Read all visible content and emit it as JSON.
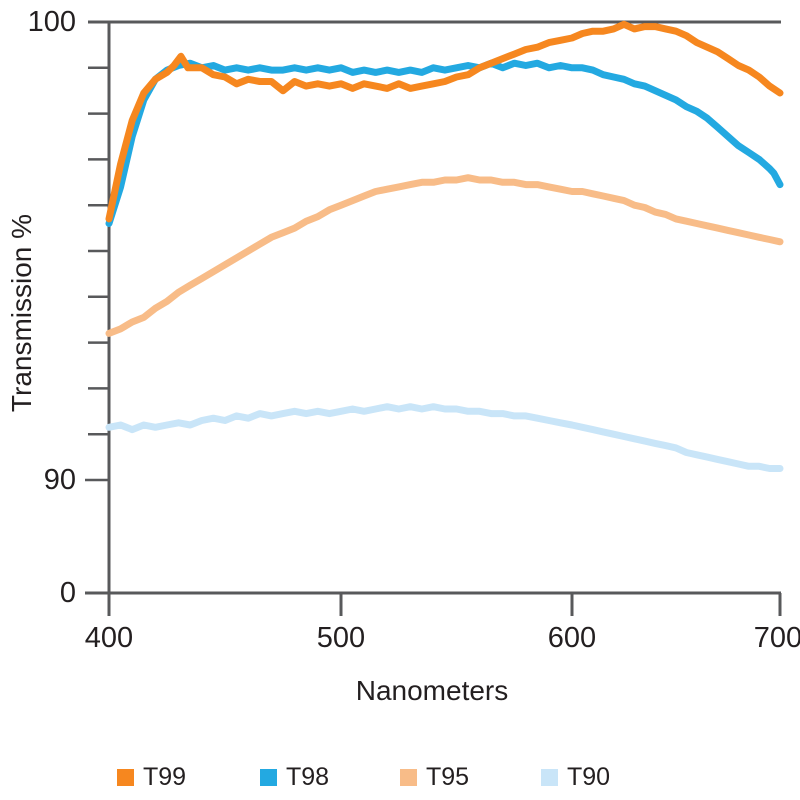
{
  "chart_data": {
    "type": "line",
    "xlabel": "Nanometers",
    "ylabel": "Transmission %",
    "x_ticks": [
      400,
      500,
      600,
      700
    ],
    "y_ticks": [
      100,
      90,
      0
    ],
    "y_axis": {
      "labeled_ticks": [
        100,
        90,
        0
      ],
      "minor_tick_interval": 1,
      "minor_tick_range": [
        90,
        100
      ],
      "broken_axis_between": [
        0,
        90
      ]
    },
    "x_range": [
      400,
      700
    ],
    "grid": "off",
    "legend_position": "bottom",
    "axis_color": "#58595B",
    "text_color": "#231F20",
    "series": [
      {
        "name": "T99",
        "color": "#F6871F",
        "points": [
          [
            400,
            95.7
          ],
          [
            405,
            96.9
          ],
          [
            410,
            97.85
          ],
          [
            415,
            98.45
          ],
          [
            420,
            98.75
          ],
          [
            425,
            98.9
          ],
          [
            428,
            99.05
          ],
          [
            431,
            99.25
          ],
          [
            434,
            99.0
          ],
          [
            440,
            99.0
          ],
          [
            445,
            98.85
          ],
          [
            450,
            98.8
          ],
          [
            455,
            98.65
          ],
          [
            460,
            98.75
          ],
          [
            465,
            98.7
          ],
          [
            470,
            98.7
          ],
          [
            475,
            98.5
          ],
          [
            480,
            98.7
          ],
          [
            485,
            98.6
          ],
          [
            490,
            98.65
          ],
          [
            495,
            98.6
          ],
          [
            500,
            98.65
          ],
          [
            505,
            98.55
          ],
          [
            510,
            98.65
          ],
          [
            515,
            98.6
          ],
          [
            520,
            98.55
          ],
          [
            525,
            98.65
          ],
          [
            530,
            98.55
          ],
          [
            535,
            98.6
          ],
          [
            540,
            98.65
          ],
          [
            545,
            98.7
          ],
          [
            550,
            98.8
          ],
          [
            555,
            98.85
          ],
          [
            560,
            99.0
          ],
          [
            565,
            99.1
          ],
          [
            570,
            99.2
          ],
          [
            575,
            99.3
          ],
          [
            580,
            99.4
          ],
          [
            585,
            99.45
          ],
          [
            590,
            99.55
          ],
          [
            595,
            99.6
          ],
          [
            600,
            99.65
          ],
          [
            605,
            99.75
          ],
          [
            610,
            99.8
          ],
          [
            615,
            99.8
          ],
          [
            620,
            99.85
          ],
          [
            625,
            99.95
          ],
          [
            630,
            99.85
          ],
          [
            635,
            99.9
          ],
          [
            640,
            99.9
          ],
          [
            645,
            99.85
          ],
          [
            650,
            99.8
          ],
          [
            655,
            99.7
          ],
          [
            660,
            99.55
          ],
          [
            665,
            99.45
          ],
          [
            670,
            99.35
          ],
          [
            675,
            99.2
          ],
          [
            680,
            99.05
          ],
          [
            685,
            98.95
          ],
          [
            690,
            98.8
          ],
          [
            695,
            98.6
          ],
          [
            700,
            98.45
          ]
        ]
      },
      {
        "name": "T98",
        "color": "#23A9E1",
        "points": [
          [
            400,
            95.6
          ],
          [
            405,
            96.4
          ],
          [
            410,
            97.5
          ],
          [
            415,
            98.3
          ],
          [
            420,
            98.75
          ],
          [
            425,
            98.95
          ],
          [
            430,
            99.05
          ],
          [
            435,
            99.1
          ],
          [
            440,
            99.0
          ],
          [
            445,
            99.05
          ],
          [
            450,
            98.95
          ],
          [
            455,
            99.0
          ],
          [
            460,
            98.95
          ],
          [
            465,
            99.0
          ],
          [
            470,
            98.95
          ],
          [
            475,
            98.95
          ],
          [
            480,
            99.0
          ],
          [
            485,
            98.95
          ],
          [
            490,
            99.0
          ],
          [
            495,
            98.95
          ],
          [
            500,
            99.0
          ],
          [
            505,
            98.9
          ],
          [
            510,
            98.95
          ],
          [
            515,
            98.9
          ],
          [
            520,
            98.95
          ],
          [
            525,
            98.9
          ],
          [
            530,
            98.95
          ],
          [
            535,
            98.9
          ],
          [
            540,
            99.0
          ],
          [
            545,
            98.95
          ],
          [
            550,
            99.0
          ],
          [
            555,
            99.05
          ],
          [
            560,
            99.0
          ],
          [
            565,
            99.1
          ],
          [
            570,
            99.0
          ],
          [
            575,
            99.1
          ],
          [
            580,
            99.05
          ],
          [
            585,
            99.1
          ],
          [
            590,
            99.0
          ],
          [
            595,
            99.05
          ],
          [
            600,
            99.0
          ],
          [
            605,
            99.0
          ],
          [
            610,
            98.95
          ],
          [
            615,
            98.85
          ],
          [
            620,
            98.8
          ],
          [
            625,
            98.75
          ],
          [
            630,
            98.65
          ],
          [
            635,
            98.6
          ],
          [
            640,
            98.5
          ],
          [
            645,
            98.4
          ],
          [
            650,
            98.3
          ],
          [
            655,
            98.15
          ],
          [
            660,
            98.05
          ],
          [
            665,
            97.9
          ],
          [
            670,
            97.7
          ],
          [
            675,
            97.5
          ],
          [
            680,
            97.3
          ],
          [
            685,
            97.15
          ],
          [
            690,
            97.0
          ],
          [
            695,
            96.8
          ],
          [
            697,
            96.7
          ],
          [
            700,
            96.45
          ]
        ]
      },
      {
        "name": "T95",
        "color": "#F8BC88",
        "points": [
          [
            400,
            93.2
          ],
          [
            405,
            93.3
          ],
          [
            410,
            93.45
          ],
          [
            415,
            93.55
          ],
          [
            420,
            93.75
          ],
          [
            425,
            93.9
          ],
          [
            430,
            94.1
          ],
          [
            435,
            94.25
          ],
          [
            440,
            94.4
          ],
          [
            445,
            94.55
          ],
          [
            450,
            94.7
          ],
          [
            455,
            94.85
          ],
          [
            460,
            95.0
          ],
          [
            465,
            95.15
          ],
          [
            470,
            95.3
          ],
          [
            475,
            95.4
          ],
          [
            480,
            95.5
          ],
          [
            485,
            95.65
          ],
          [
            490,
            95.75
          ],
          [
            495,
            95.9
          ],
          [
            500,
            96.0
          ],
          [
            505,
            96.1
          ],
          [
            510,
            96.2
          ],
          [
            515,
            96.3
          ],
          [
            520,
            96.35
          ],
          [
            525,
            96.4
          ],
          [
            530,
            96.45
          ],
          [
            535,
            96.5
          ],
          [
            540,
            96.5
          ],
          [
            545,
            96.55
          ],
          [
            550,
            96.55
          ],
          [
            555,
            96.6
          ],
          [
            560,
            96.55
          ],
          [
            565,
            96.55
          ],
          [
            570,
            96.5
          ],
          [
            575,
            96.5
          ],
          [
            580,
            96.45
          ],
          [
            585,
            96.45
          ],
          [
            590,
            96.4
          ],
          [
            595,
            96.35
          ],
          [
            600,
            96.3
          ],
          [
            605,
            96.3
          ],
          [
            610,
            96.25
          ],
          [
            615,
            96.2
          ],
          [
            620,
            96.15
          ],
          [
            625,
            96.1
          ],
          [
            630,
            96.0
          ],
          [
            635,
            95.95
          ],
          [
            640,
            95.85
          ],
          [
            645,
            95.8
          ],
          [
            650,
            95.7
          ],
          [
            655,
            95.65
          ],
          [
            660,
            95.6
          ],
          [
            665,
            95.55
          ],
          [
            670,
            95.5
          ],
          [
            675,
            95.45
          ],
          [
            680,
            95.4
          ],
          [
            685,
            95.35
          ],
          [
            690,
            95.3
          ],
          [
            695,
            95.25
          ],
          [
            700,
            95.2
          ]
        ]
      },
      {
        "name": "T90",
        "color": "#C9E5F8",
        "points": [
          [
            400,
            91.15
          ],
          [
            405,
            91.2
          ],
          [
            410,
            91.1
          ],
          [
            415,
            91.2
          ],
          [
            420,
            91.15
          ],
          [
            425,
            91.2
          ],
          [
            430,
            91.25
          ],
          [
            435,
            91.2
          ],
          [
            440,
            91.3
          ],
          [
            445,
            91.35
          ],
          [
            450,
            91.3
          ],
          [
            455,
            91.4
          ],
          [
            460,
            91.35
          ],
          [
            465,
            91.45
          ],
          [
            470,
            91.4
          ],
          [
            475,
            91.45
          ],
          [
            480,
            91.5
          ],
          [
            485,
            91.45
          ],
          [
            490,
            91.5
          ],
          [
            495,
            91.45
          ],
          [
            500,
            91.5
          ],
          [
            505,
            91.55
          ],
          [
            510,
            91.5
          ],
          [
            515,
            91.55
          ],
          [
            520,
            91.6
          ],
          [
            525,
            91.55
          ],
          [
            530,
            91.6
          ],
          [
            535,
            91.55
          ],
          [
            540,
            91.6
          ],
          [
            545,
            91.55
          ],
          [
            550,
            91.55
          ],
          [
            555,
            91.5
          ],
          [
            560,
            91.5
          ],
          [
            565,
            91.45
          ],
          [
            570,
            91.45
          ],
          [
            575,
            91.4
          ],
          [
            580,
            91.4
          ],
          [
            585,
            91.35
          ],
          [
            590,
            91.3
          ],
          [
            595,
            91.25
          ],
          [
            600,
            91.2
          ],
          [
            605,
            91.15
          ],
          [
            610,
            91.1
          ],
          [
            615,
            91.05
          ],
          [
            620,
            91.0
          ],
          [
            625,
            90.95
          ],
          [
            630,
            90.9
          ],
          [
            635,
            90.85
          ],
          [
            640,
            90.8
          ],
          [
            645,
            90.75
          ],
          [
            650,
            90.7
          ],
          [
            655,
            90.6
          ],
          [
            660,
            90.55
          ],
          [
            665,
            90.5
          ],
          [
            670,
            90.45
          ],
          [
            675,
            90.4
          ],
          [
            680,
            90.35
          ],
          [
            685,
            90.3
          ],
          [
            690,
            90.3
          ],
          [
            695,
            90.25
          ],
          [
            700,
            90.25
          ]
        ]
      }
    ]
  }
}
